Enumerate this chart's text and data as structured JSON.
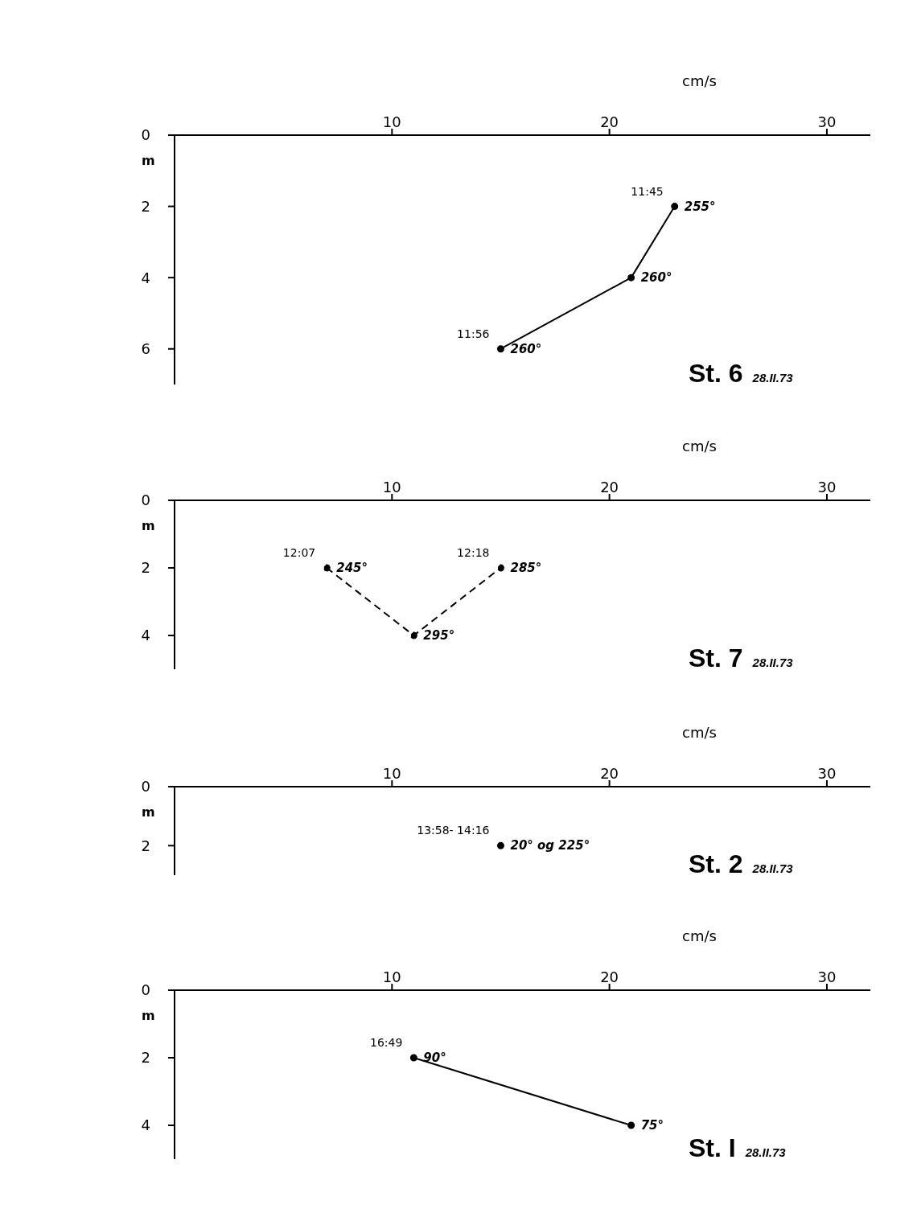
{
  "chart_data": [
    {
      "type": "line",
      "title": "St. 6",
      "subtitle": "28.II.73",
      "xlabel": "cm/s",
      "ylabel": "m",
      "xlim": [
        0,
        32
      ],
      "xticks": [
        10,
        20,
        30
      ],
      "ylim": [
        7,
        0
      ],
      "yticks": [
        0,
        2,
        4,
        6
      ],
      "marker": "circle",
      "series": [
        {
          "color": "#000000",
          "line_style": "solid",
          "x": [
            23,
            21,
            15
          ],
          "values": [
            2,
            4,
            6
          ]
        }
      ],
      "annotations": [
        {
          "text": "255°",
          "x": 23,
          "y": 2
        },
        {
          "text": "11:45",
          "x": 23,
          "y": 2
        },
        {
          "text": "260°",
          "x": 21,
          "y": 4
        },
        {
          "text": "260°",
          "x": 15,
          "y": 6
        },
        {
          "text": "11:56",
          "x": 15,
          "y": 6
        }
      ]
    },
    {
      "type": "line",
      "title": "St. 7",
      "subtitle": "28.II.73",
      "xlabel": "cm/s",
      "ylabel": "m",
      "xlim": [
        0,
        32
      ],
      "xticks": [
        10,
        20,
        30
      ],
      "ylim": [
        5,
        0
      ],
      "yticks": [
        0,
        2,
        4
      ],
      "marker": "circle",
      "series": [
        {
          "color": "#000000",
          "line_style": "dashed",
          "x": [
            7,
            11,
            15
          ],
          "values": [
            2,
            4,
            2
          ]
        }
      ],
      "annotations": [
        {
          "text": "245°",
          "x": 7,
          "y": 2
        },
        {
          "text": "12:07",
          "x": 7,
          "y": 2
        },
        {
          "text": "295°",
          "x": 11,
          "y": 4
        },
        {
          "text": "285°",
          "x": 15,
          "y": 2
        },
        {
          "text": "12:18",
          "x": 15,
          "y": 2
        }
      ]
    },
    {
      "type": "line",
      "title": "St. 2",
      "subtitle": "28.II.73",
      "xlabel": "cm/s",
      "ylabel": "m",
      "xlim": [
        0,
        32
      ],
      "xticks": [
        10,
        20,
        30
      ],
      "ylim": [
        3,
        0
      ],
      "yticks": [
        0,
        2
      ],
      "marker": "circle",
      "series": [
        {
          "color": "#000000",
          "line_style": "solid",
          "x": [
            15
          ],
          "values": [
            2
          ]
        }
      ],
      "annotations": [
        {
          "text": "20° og 225°",
          "x": 15,
          "y": 2
        },
        {
          "text": "13:58- 14:16",
          "x": 15,
          "y": 2
        }
      ]
    },
    {
      "type": "line",
      "title": "St. I",
      "subtitle": "28.II.73",
      "xlabel": "cm/s",
      "ylabel": "m",
      "xlim": [
        0,
        32
      ],
      "xticks": [
        10,
        20,
        30
      ],
      "ylim": [
        5,
        0
      ],
      "yticks": [
        0,
        2,
        4
      ],
      "marker": "circle",
      "series": [
        {
          "color": "#000000",
          "line_style": "solid",
          "x": [
            11,
            21
          ],
          "values": [
            2,
            4
          ]
        }
      ],
      "annotations": [
        {
          "text": "90°",
          "x": 11,
          "y": 2
        },
        {
          "text": "16:49",
          "x": 11,
          "y": 2
        },
        {
          "text": "75°",
          "x": 21,
          "y": 4
        }
      ]
    }
  ]
}
